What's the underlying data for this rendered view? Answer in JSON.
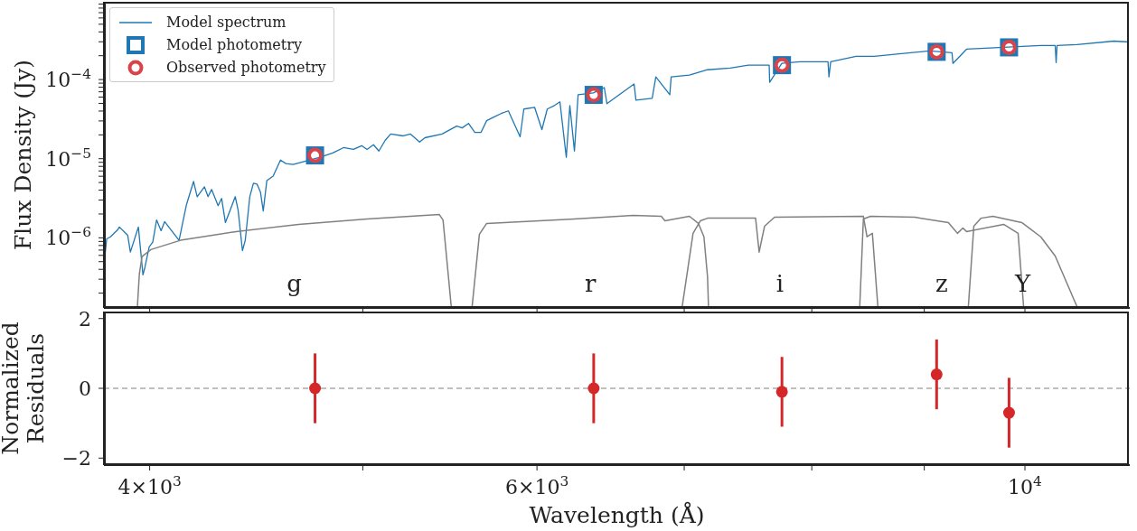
{
  "chart_data": [
    {
      "type": "line",
      "ylabel": "Flux Density (Jy)",
      "log": "xy",
      "legend": "top left",
      "tick_labels": "y",
      "xlim": [
        3813,
        11160
      ],
      "xticks": [
        {
          "value": 4000,
          "label": null
        },
        {
          "value": 5000,
          "label": null
        },
        {
          "value": 6000,
          "label": null
        },
        {
          "value": 7000,
          "label": null
        },
        {
          "value": 8000,
          "label": null
        },
        {
          "value": 9000,
          "label": null
        },
        {
          "value": 10000,
          "label": null
        }
      ],
      "ylim": [
        1.3e-07,
        0.00096
      ],
      "yticks": [
        {
          "value": 2e-07,
          "label": null
        },
        {
          "value": 3e-07,
          "label": null
        },
        {
          "value": 4e-07,
          "label": null
        },
        {
          "value": 5e-07,
          "label": null
        },
        {
          "value": 6e-07,
          "label": null
        },
        {
          "value": 7e-07,
          "label": null
        },
        {
          "value": 8e-07,
          "label": null
        },
        {
          "value": 9e-07,
          "label": null
        },
        {
          "value": 1e-06,
          "label": "10$^{−6}$"
        },
        {
          "value": 2e-06,
          "label": null
        },
        {
          "value": 3e-06,
          "label": null
        },
        {
          "value": 4e-06,
          "label": null
        },
        {
          "value": 5e-06,
          "label": null
        },
        {
          "value": 6e-06,
          "label": null
        },
        {
          "value": 7e-06,
          "label": null
        },
        {
          "value": 8e-06,
          "label": null
        },
        {
          "value": 9e-06,
          "label": null
        },
        {
          "value": 1e-05,
          "label": "10$^{−5}$"
        },
        {
          "value": 2e-05,
          "label": null
        },
        {
          "value": 3e-05,
          "label": null
        },
        {
          "value": 4e-05,
          "label": null
        },
        {
          "value": 5e-05,
          "label": null
        },
        {
          "value": 6e-05,
          "label": null
        },
        {
          "value": 7e-05,
          "label": null
        },
        {
          "value": 8e-05,
          "label": null
        },
        {
          "value": 9e-05,
          "label": null
        },
        {
          "value": 0.0001,
          "label": "10$^{−4}$"
        },
        {
          "value": 0.0002,
          "label": null
        },
        {
          "value": 0.0003,
          "label": null
        },
        {
          "value": 0.0004,
          "label": null
        },
        {
          "value": 0.0005,
          "label": null
        },
        {
          "value": 0.0006,
          "label": null
        },
        {
          "value": 0.0007,
          "label": null
        },
        {
          "value": 0.0008,
          "label": null
        },
        {
          "value": 0.0009,
          "label": null
        }
      ],
      "series": [
        {
          "name": "Model spectrum",
          "type": "line",
          "color": "#1f77b4",
          "x": [
            3817,
            3824,
            3839,
            3868,
            3875,
            3909,
            3920,
            3953,
            3972,
            3979,
            3998,
            4013,
            4029,
            4048,
            4063,
            4125,
            4157,
            4188,
            4204,
            4236,
            4252,
            4268,
            4297,
            4313,
            4330,
            4375,
            4388,
            4408,
            4421,
            4442,
            4459,
            4476,
            4492,
            4505,
            4522,
            4552,
            4587,
            4613,
            4648,
            4727,
            4781,
            4845,
            4900,
            4951,
            4994,
            5022,
            5056,
            5085,
            5118,
            5148,
            5216,
            5256,
            5306,
            5336,
            5433,
            5516,
            5548,
            5585,
            5622,
            5659,
            5692,
            5735,
            5779,
            5823,
            5895,
            5918,
            5985,
            6031,
            6065,
            6111,
            6146,
            6187,
            6210,
            6240,
            6264,
            6365,
            6438,
            6456,
            6642,
            6655,
            6769,
            6795,
            6895,
            6905,
            7038,
            7173,
            7345,
            7486,
            7651,
            7655,
            7753,
            7902,
            8137,
            8145,
            8160,
            8380,
            8540,
            8703,
            9048,
            9265,
            9274,
            9407,
            9780,
            10167,
            10322,
            10332,
            10342,
            10560,
            10978,
            11150
          ],
          "values": [
            5.9e-07,
            9.7e-07,
            1.03e-06,
            1.26e-06,
            1.37e-06,
            1.08e-06,
            6.6e-07,
            1.37e-06,
            3.4e-07,
            4.1e-07,
            7.7e-07,
            8.8e-07,
            1.68e-06,
            1.23e-06,
            1.6e-06,
            9.3e-07,
            2.62e-06,
            5.15e-06,
            3.31e-06,
            4.41e-06,
            3.31e-06,
            4.08e-06,
            2.55e-06,
            3.14e-06,
            1.56e-06,
            3.31e-06,
            2.24e-06,
            6.9e-07,
            9.3e-07,
            3.31e-06,
            4.89e-06,
            4.77e-06,
            3.77e-06,
            2.18e-06,
            5.29e-06,
            6.02e-06,
            9.6e-06,
            8.67e-06,
            8.44e-06,
            9.6e-06,
            1.04e-05,
            1.18e-05,
            1.38e-05,
            1.31e-05,
            1.46e-05,
            1.31e-05,
            1.5e-05,
            1.25e-05,
            1.7e-05,
            2.05e-05,
            1.94e-05,
            2.05e-05,
            1.62e-05,
            1.84e-05,
            2.05e-05,
            2.58e-05,
            2.45e-05,
            2.79e-05,
            2.15e-05,
            2.15e-05,
            3.02e-05,
            3.35e-05,
            3.72e-05,
            4.02e-05,
            1.89e-05,
            4.24e-05,
            4.46e-05,
            2.33e-05,
            4.24e-05,
            4.7e-05,
            5.22e-05,
            1.04e-05,
            4.7e-05,
            1.25e-05,
            6.43e-05,
            6.77e-05,
            7.91e-05,
            4.95e-05,
            8.78e-05,
            5.5e-05,
            5.79e-05,
            0.000108,
            6.43e-05,
            0.000108,
            0.000114,
            0.000133,
            0.00014,
            0.000152,
            0.000152,
            9.25e-05,
            0.00016,
            0.000168,
            0.000168,
            0.000108,
            0.000168,
            0.000197,
            0.000197,
            0.000207,
            0.00023,
            0.000218,
            0.00016,
            0.000242,
            0.000255,
            0.000269,
            0.000269,
            0.000164,
            0.000269,
            0.000276,
            0.000306,
            0.000298
          ]
        },
        {
          "name": "Model photometry",
          "type": "scatter",
          "marker": "square",
          "color": "#1f77b4",
          "x": [
            4756,
            6367,
            7754,
            9117,
            9835
          ],
          "values": [
            1.1e-05,
            6.4e-05,
            0.000152,
            0.000224,
            0.000255
          ]
        },
        {
          "name": "Observed photometry",
          "type": "scatter",
          "marker": "circle",
          "color": "#d9444b",
          "x": [
            4756,
            6367,
            7754,
            9117,
            9835
          ],
          "values": [
            1.1e-05,
            6.4e-05,
            0.000152,
            0.000224,
            0.000255
          ]
        },
        {
          "type": "line",
          "color": "#808080",
          "x": [
            3949,
            3957,
            3968,
            4005,
            4131,
            4379,
            4675,
            5022,
            5417,
            5438,
            5469,
            5485
          ],
          "values": [
            1.35e-07,
            3.5e-07,
            5.8e-07,
            7.1e-07,
            9.3e-07,
            1.2e-06,
            1.48e-06,
            1.73e-06,
            1.97e-06,
            1.68e-06,
            3.2e-07,
            1.35e-07
          ]
        },
        {
          "type": "line",
          "color": "#808080",
          "x": [
            5606,
            5649,
            5692,
            6240,
            6636,
            6834,
            6860,
            7038,
            7105,
            7146,
            7173,
            7180
          ],
          "values": [
            1.35e-07,
            1.11e-06,
            1.52e-06,
            1.73e-06,
            1.92e-06,
            1.87e-06,
            1.64e-06,
            1.87e-06,
            1.52e-06,
            1.03e-06,
            3.2e-07,
            1.35e-07
          ]
        },
        {
          "type": "line",
          "color": "#808080",
          "x": [
            6985,
            7065,
            7119,
            7173,
            7543,
            7571,
            7614,
            7694,
            8444,
            8476,
            8524,
            8573
          ],
          "values": [
            1.35e-07,
            1.14e-06,
            1.64e-06,
            1.77e-06,
            1.77e-06,
            6.6e-07,
            1.4e-06,
            1.82e-06,
            1.87e-06,
            1.03e-06,
            1.14e-06,
            1.35e-07
          ]
        },
        {
          "type": "line",
          "color": "#808080",
          "x": [
            8412,
            8444,
            8508,
            8911,
            9230,
            9318,
            9371,
            9407,
            9780,
            9929,
            9986
          ],
          "values": [
            1.35e-07,
            1.73e-06,
            1.87e-06,
            1.82e-06,
            1.56e-06,
            1.14e-06,
            1.33e-06,
            1.2e-06,
            1.48e-06,
            1.14e-06,
            1.35e-07
          ]
        },
        {
          "type": "line",
          "color": "#808080",
          "x": [
            9425,
            9479,
            9551,
            9670,
            9967,
            10167,
            10322,
            10560
          ],
          "values": [
            1.35e-07,
            1.4e-06,
            1.77e-06,
            1.87e-06,
            1.56e-06,
            1.03e-06,
            5.9e-07,
            1.35e-07
          ]
        }
      ],
      "annotations": [
        "g",
        "r",
        "i",
        "z",
        "Y"
      ]
    },
    {
      "type": "scatter",
      "xlabel": "Wavelength (Å)",
      "ylabel": "Normalized\nResiduals",
      "log": "x",
      "marker": "circle",
      "color": "#d62728",
      "xlim": [
        3813,
        11160
      ],
      "xticks": [
        {
          "value": 4000,
          "label": "4×10$^{3}$"
        },
        {
          "value": 5000,
          "label": null
        },
        {
          "value": 6000,
          "label": "6×10$^{3}$"
        },
        {
          "value": 7000,
          "label": null
        },
        {
          "value": 8000,
          "label": null
        },
        {
          "value": 9000,
          "label": null
        },
        {
          "value": 10000,
          "label": "10$^{4}$"
        }
      ],
      "ylim": [
        -2.2,
        2.2
      ],
      "yticks": [
        {
          "value": -2,
          "label": "−2"
        },
        0,
        2
      ],
      "x": [
        4756,
        6367,
        7754,
        9117,
        9835
      ],
      "values": [
        0,
        0,
        -0.1,
        0.4,
        -0.7
      ],
      "errors": [
        1,
        1,
        1,
        1,
        1
      ],
      "ref_lines": [
        {
          "axis": "y",
          "value": 0,
          "color": "#808080",
          "line_style": "dashed"
        }
      ]
    }
  ]
}
